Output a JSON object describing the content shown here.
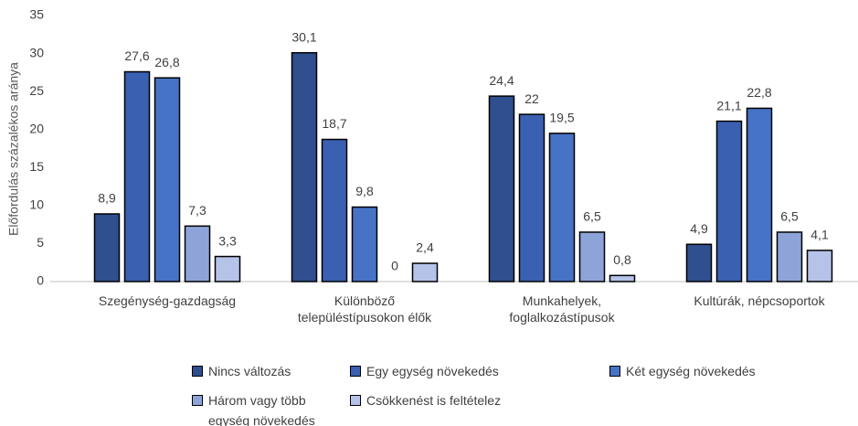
{
  "chart_data": {
    "type": "bar",
    "y_label": "Előfordulás százalékos aránya",
    "categories": [
      "Szegénység-gazdagság",
      "Különböző településtípusokon élők",
      "Munkahelyek, foglalkozástípusok",
      "Kultúrák, népcsoportok"
    ],
    "series": [
      {
        "name": "Nincs változás",
        "color": "#2f4f8f",
        "values": [
          8.9,
          30.1,
          24.4,
          4.9
        ],
        "value_labels": [
          "8,9",
          "30,1",
          "24,4",
          "4,9"
        ]
      },
      {
        "name": "Egy egység növekedés",
        "color": "#3a60b2",
        "values": [
          27.6,
          18.7,
          22,
          21.1
        ],
        "value_labels": [
          "27,6",
          "18,7",
          "22",
          "21,1"
        ]
      },
      {
        "name": "Két egység növekedés",
        "color": "#4673c6",
        "values": [
          26.8,
          9.8,
          19.5,
          22.8
        ],
        "value_labels": [
          "26,8",
          "9,8",
          "19,5",
          "22,8"
        ]
      },
      {
        "name": "Három vagy több egység növekedés",
        "color": "#8ea3d8",
        "values": [
          7.3,
          0,
          6.5,
          6.5
        ],
        "value_labels": [
          "7,3",
          "0",
          "6,5",
          "6,5"
        ]
      },
      {
        "name": "Csökkenést is feltételez",
        "color": "#b6c3e9",
        "values": [
          3.3,
          2.4,
          0.8,
          4.1
        ],
        "value_labels": [
          "3,3",
          "2,4",
          "0,8",
          "4,1"
        ]
      }
    ],
    "ylim": [
      0,
      35
    ],
    "yticks": [
      0,
      5,
      10,
      15,
      20,
      25,
      30,
      35
    ],
    "grid": false,
    "legend": "bottom"
  }
}
